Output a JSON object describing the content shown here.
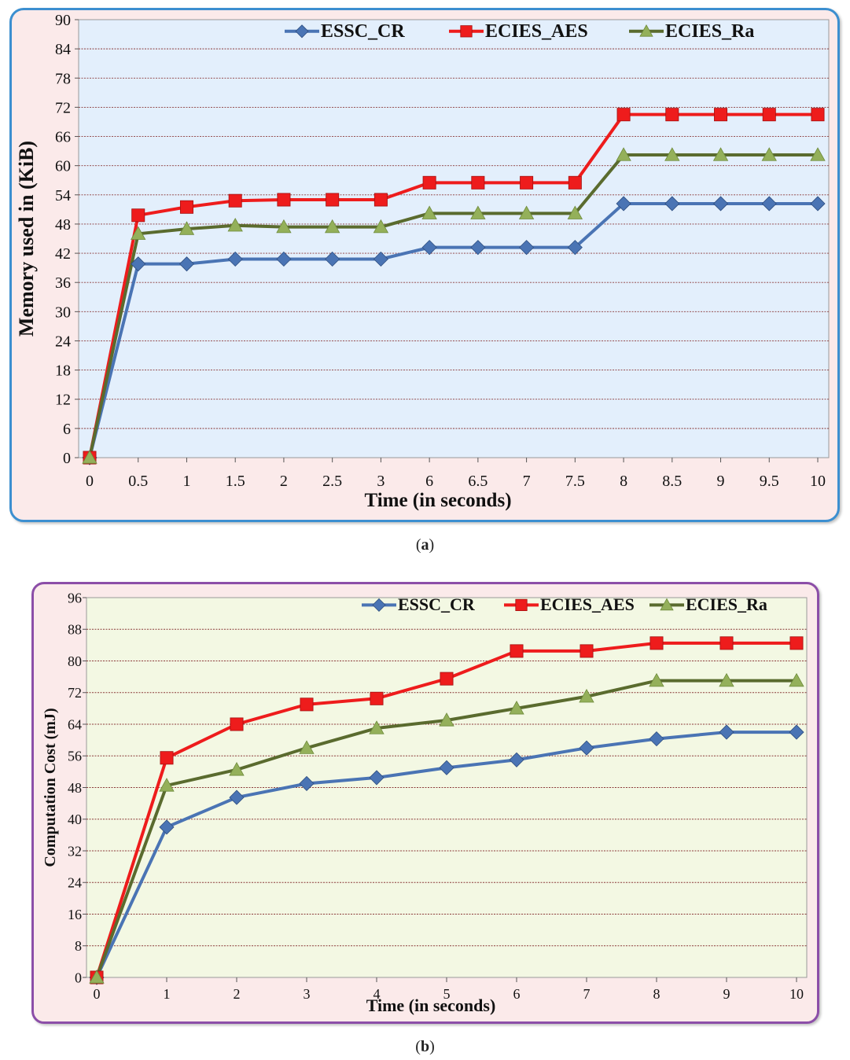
{
  "captions": {
    "a": "a",
    "b": "b"
  },
  "chart_data": [
    {
      "type": "line",
      "id": "a",
      "title": "",
      "xlabel": "Time (in seconds)",
      "ylabel": "Memory used in (KiB)",
      "categories": [
        "0",
        "0.5",
        "1",
        "1.5",
        "2",
        "2.5",
        "3",
        "6",
        "6.5",
        "7",
        "7.5",
        "8",
        "8.5",
        "9",
        "9.5",
        "10"
      ],
      "ylim": [
        0,
        90
      ],
      "yticks": [
        0,
        6,
        12,
        18,
        24,
        30,
        36,
        42,
        48,
        54,
        60,
        66,
        72,
        78,
        84,
        90
      ],
      "grid": true,
      "legend": "top-right",
      "series": [
        {
          "name": "ESSC_CR",
          "color": "#4a74b4",
          "marker": "diamond",
          "values": [
            0,
            39.8,
            39.8,
            40.8,
            40.8,
            40.8,
            40.8,
            43.2,
            43.2,
            43.2,
            43.2,
            52.2,
            52.2,
            52.2,
            52.2,
            52.2
          ]
        },
        {
          "name": "ECIES_AES",
          "color": "#ee1c1c",
          "marker": "square",
          "values": [
            0,
            49.8,
            51.5,
            52.8,
            53,
            53,
            53,
            56.5,
            56.5,
            56.5,
            56.5,
            70.5,
            70.5,
            70.5,
            70.5,
            70.5
          ]
        },
        {
          "name": "ECIES_Ra",
          "color": "#5a6b2e",
          "marker": "triangle",
          "values": [
            0,
            46,
            47,
            47.7,
            47.4,
            47.4,
            47.4,
            50.2,
            50.2,
            50.2,
            50.2,
            62.2,
            62.2,
            62.2,
            62.2,
            62.2
          ]
        }
      ]
    },
    {
      "type": "line",
      "id": "b",
      "title": "",
      "xlabel": "Time (in seconds)",
      "ylabel": "Computation  Cost (mJ)",
      "categories": [
        "0",
        "1",
        "2",
        "3",
        "4",
        "5",
        "6",
        "7",
        "8",
        "9",
        "10"
      ],
      "ylim": [
        0,
        96
      ],
      "yticks": [
        0,
        8,
        16,
        24,
        32,
        40,
        48,
        56,
        64,
        72,
        80,
        88,
        96
      ],
      "grid": true,
      "legend": "top-right",
      "series": [
        {
          "name": "ESSC_CR",
          "color": "#4a74b4",
          "marker": "diamond",
          "values": [
            0,
            38,
            45.5,
            49,
            50.5,
            53,
            55,
            58,
            60.3,
            62,
            62
          ]
        },
        {
          "name": "ECIES_AES",
          "color": "#ee1c1c",
          "marker": "square",
          "values": [
            0,
            55.5,
            64,
            69,
            70.5,
            75.5,
            82.5,
            82.5,
            84.5,
            84.5,
            84.5
          ]
        },
        {
          "name": "ECIES_Ra",
          "color": "#5a6b2e",
          "marker": "triangle",
          "values": [
            0,
            48.5,
            52.5,
            58,
            63,
            65,
            68,
            71,
            75,
            75,
            75
          ]
        }
      ]
    }
  ]
}
